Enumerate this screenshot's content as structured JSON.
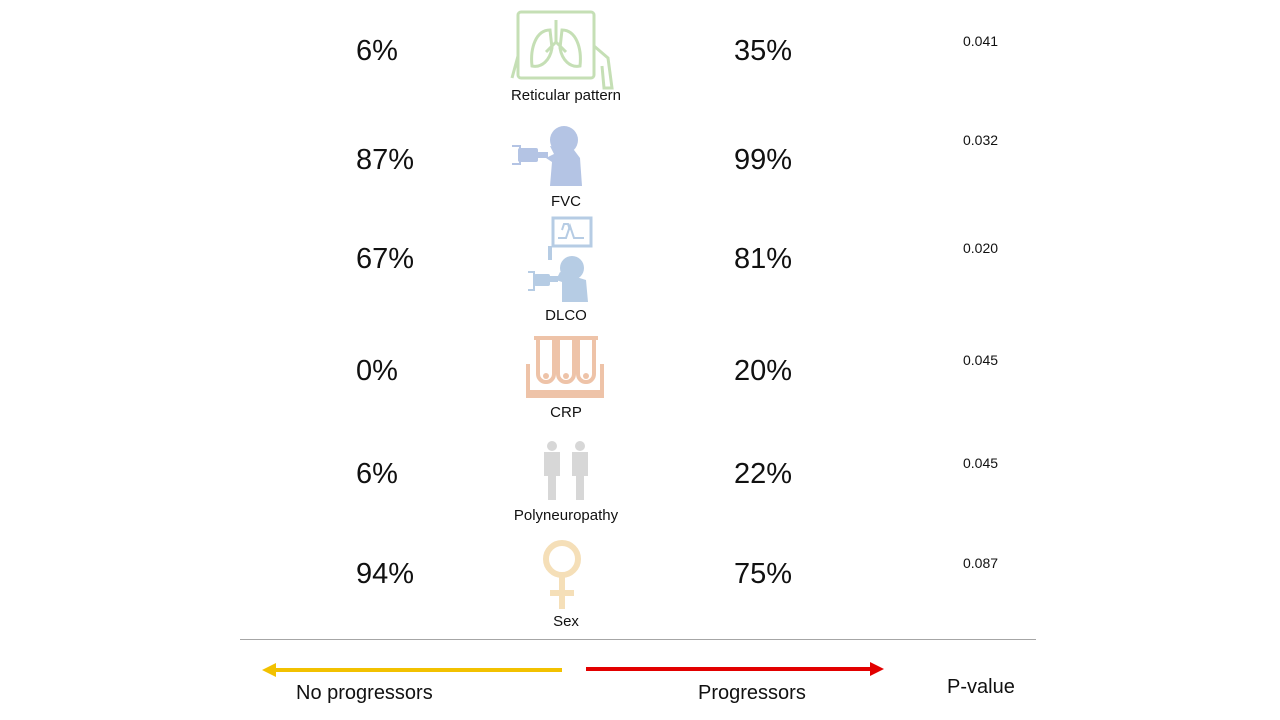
{
  "rows": [
    {
      "label": "Reticular pattern",
      "no_progressors": "6%",
      "progressors": "35%",
      "p_value": "0.041",
      "icon": "lungs-icon",
      "icon_color": "#c5dfb5"
    },
    {
      "label": "FVC",
      "no_progressors": "87%",
      "progressors": "99%",
      "p_value": "0.032",
      "icon": "spirometry-icon",
      "icon_color": "#b4c4e4"
    },
    {
      "label": "DLCO",
      "no_progressors": "67%",
      "progressors": "81%",
      "p_value": "0.020",
      "icon": "diffusion-test-icon",
      "icon_color": "#b6cce4"
    },
    {
      "label": "CRP",
      "no_progressors": "0%",
      "progressors": "20%",
      "p_value": "0.045",
      "icon": "test-tubes-icon",
      "icon_color": "#eec3a8"
    },
    {
      "label": "Polyneuropathy",
      "no_progressors": "6%",
      "progressors": "22%",
      "p_value": "0.045",
      "icon": "people-icon",
      "icon_color": "#d7d7d7"
    },
    {
      "label": "Sex",
      "no_progressors": "94%",
      "progressors": "75%",
      "p_value": "0.087",
      "icon": "female-symbol-icon",
      "icon_color": "#f5dfb8"
    }
  ],
  "legend": {
    "no_progressors": "No progressors",
    "progressors": "Progressors",
    "p_value": "P-value"
  },
  "colors": {
    "no_progressors_arrow": "#f2c100",
    "progressors_arrow": "#e20000",
    "divider": "#a6a6a6"
  }
}
